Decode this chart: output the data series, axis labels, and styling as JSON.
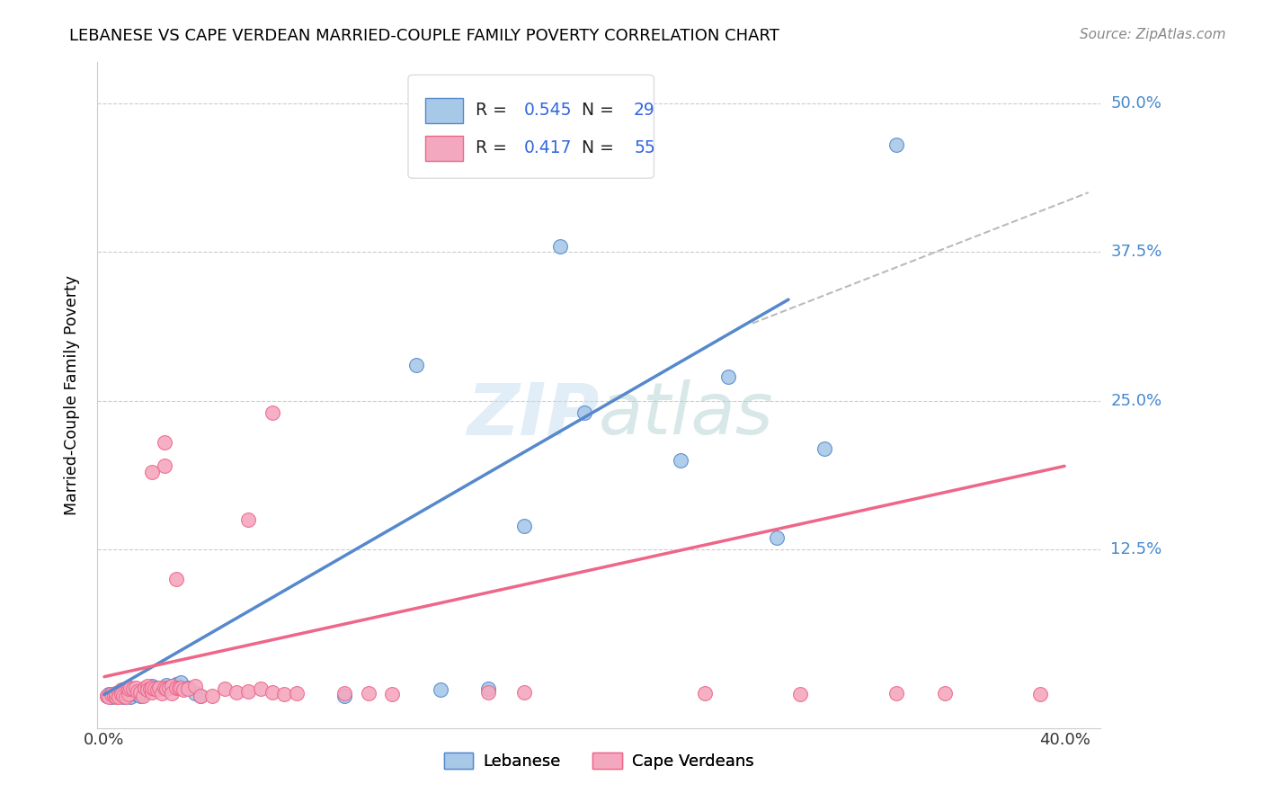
{
  "title": "LEBANESE VS CAPE VERDEAN MARRIED-COUPLE FAMILY POVERTY CORRELATION CHART",
  "source": "Source: ZipAtlas.com",
  "ylabel": "Married-Couple Family Poverty",
  "ytick_labels": [
    "50.0%",
    "37.5%",
    "25.0%",
    "12.5%"
  ],
  "ytick_values": [
    0.5,
    0.375,
    0.25,
    0.125
  ],
  "xlim": [
    -0.003,
    0.415
  ],
  "ylim": [
    -0.025,
    0.535
  ],
  "watermark": "ZIPatlas",
  "lebanese_color": "#a8c8e8",
  "cape_verdean_color": "#f4a8c0",
  "line_lebanese_color": "#5588cc",
  "line_cape_verdean_color": "#ee6688",
  "leb_line": [
    [
      0.0,
      0.003
    ],
    [
      0.285,
      0.335
    ]
  ],
  "cape_line": [
    [
      0.0,
      0.018
    ],
    [
      0.4,
      0.195
    ]
  ],
  "dash_line": [
    [
      0.27,
      0.315
    ],
    [
      0.41,
      0.425
    ]
  ],
  "lebanese_x": [
    0.001,
    0.002,
    0.003,
    0.004,
    0.005,
    0.006,
    0.007,
    0.008,
    0.009,
    0.01,
    0.011,
    0.012,
    0.013,
    0.015,
    0.016,
    0.018,
    0.019,
    0.02,
    0.022,
    0.024,
    0.026,
    0.028,
    0.03,
    0.032,
    0.035,
    0.038,
    0.04,
    0.1,
    0.14,
    0.16,
    0.175,
    0.19,
    0.24,
    0.26,
    0.28,
    0.3,
    0.33,
    0.13,
    0.2
  ],
  "lebanese_y": [
    0.002,
    0.003,
    0.001,
    0.002,
    0.004,
    0.002,
    0.003,
    0.001,
    0.002,
    0.003,
    0.001,
    0.004,
    0.003,
    0.002,
    0.005,
    0.007,
    0.008,
    0.01,
    0.009,
    0.008,
    0.011,
    0.01,
    0.012,
    0.013,
    0.009,
    0.004,
    0.002,
    0.002,
    0.007,
    0.008,
    0.145,
    0.38,
    0.2,
    0.27,
    0.135,
    0.21,
    0.465,
    0.28,
    0.24
  ],
  "cape_x": [
    0.001,
    0.002,
    0.003,
    0.004,
    0.005,
    0.005,
    0.006,
    0.006,
    0.007,
    0.007,
    0.008,
    0.009,
    0.01,
    0.01,
    0.011,
    0.012,
    0.013,
    0.014,
    0.015,
    0.016,
    0.017,
    0.018,
    0.018,
    0.019,
    0.02,
    0.02,
    0.021,
    0.022,
    0.023,
    0.024,
    0.025,
    0.026,
    0.027,
    0.028,
    0.028,
    0.03,
    0.031,
    0.032,
    0.033,
    0.035,
    0.038,
    0.04,
    0.045,
    0.05,
    0.055,
    0.06,
    0.065,
    0.07,
    0.075,
    0.08,
    0.1,
    0.11,
    0.12,
    0.16,
    0.175,
    0.25,
    0.29,
    0.33,
    0.35,
    0.39,
    0.02,
    0.025,
    0.025,
    0.03,
    0.06,
    0.07
  ],
  "cape_y": [
    0.002,
    0.001,
    0.003,
    0.002,
    0.001,
    0.004,
    0.005,
    0.001,
    0.007,
    0.003,
    0.002,
    0.001,
    0.003,
    0.008,
    0.009,
    0.008,
    0.009,
    0.006,
    0.005,
    0.002,
    0.009,
    0.01,
    0.007,
    0.008,
    0.005,
    0.009,
    0.008,
    0.007,
    0.009,
    0.004,
    0.009,
    0.008,
    0.009,
    0.01,
    0.004,
    0.009,
    0.009,
    0.009,
    0.007,
    0.008,
    0.01,
    0.002,
    0.002,
    0.008,
    0.005,
    0.006,
    0.008,
    0.005,
    0.003,
    0.004,
    0.004,
    0.004,
    0.003,
    0.005,
    0.005,
    0.004,
    0.003,
    0.004,
    0.004,
    0.003,
    0.19,
    0.195,
    0.215,
    0.1,
    0.15,
    0.24
  ]
}
